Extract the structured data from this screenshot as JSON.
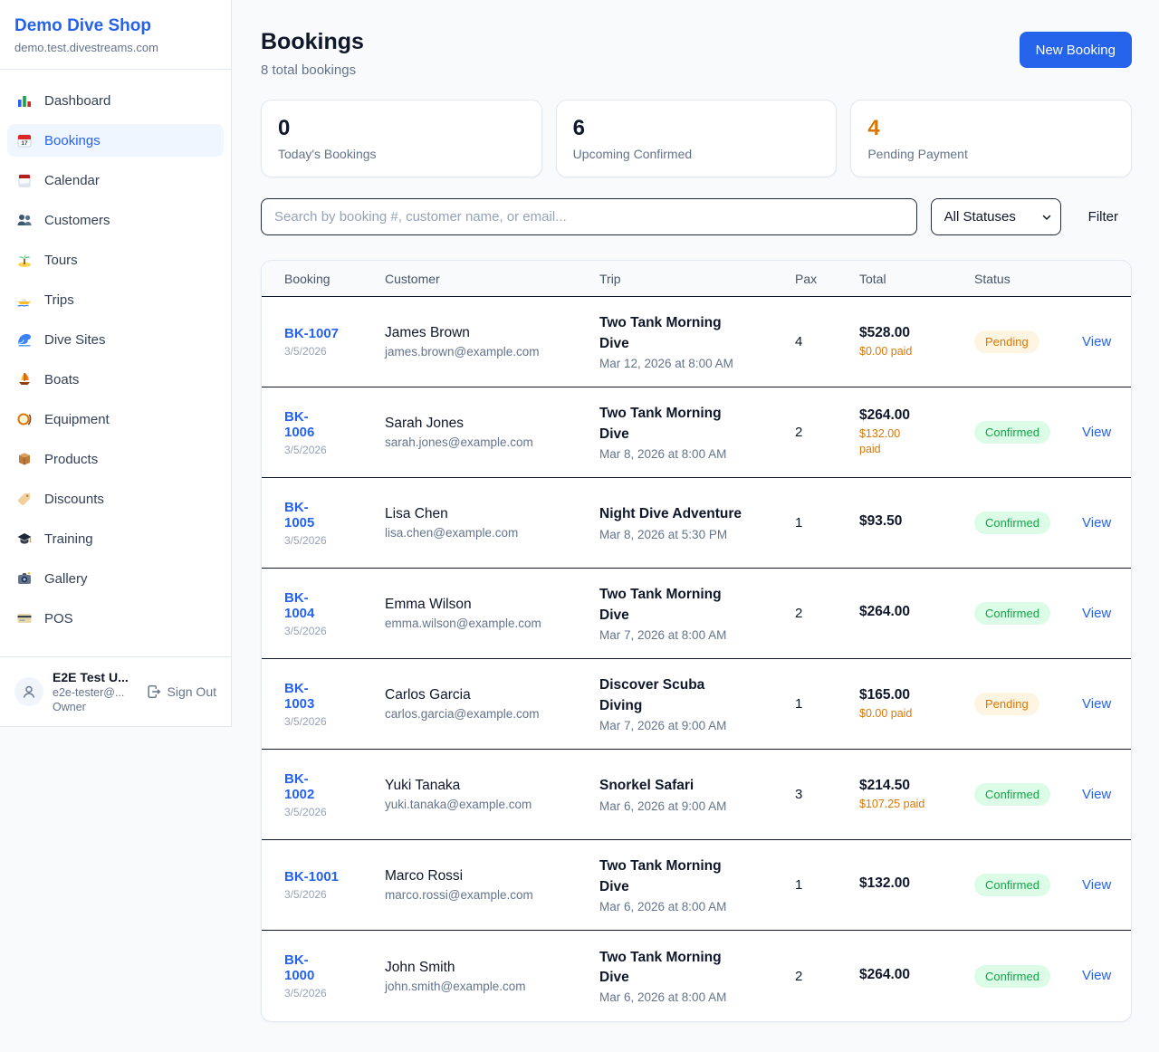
{
  "brand": {
    "name": "Demo Dive Shop",
    "domain": "demo.test.divestreams.com"
  },
  "sidebar": {
    "items": [
      {
        "label": "Dashboard",
        "icon": "bar-chart-icon"
      },
      {
        "label": "Bookings",
        "icon": "calendar-icon"
      },
      {
        "label": "Calendar",
        "icon": "tear-off-calendar-icon"
      },
      {
        "label": "Customers",
        "icon": "people-icon"
      },
      {
        "label": "Tours",
        "icon": "island-icon"
      },
      {
        "label": "Trips",
        "icon": "speedboat-icon"
      },
      {
        "label": "Dive Sites",
        "icon": "wave-icon"
      },
      {
        "label": "Boats",
        "icon": "sailboat-icon"
      },
      {
        "label": "Equipment",
        "icon": "dive-mask-icon"
      },
      {
        "label": "Products",
        "icon": "package-icon"
      },
      {
        "label": "Discounts",
        "icon": "tag-icon"
      },
      {
        "label": "Training",
        "icon": "graduation-cap-icon"
      },
      {
        "label": "Gallery",
        "icon": "camera-icon"
      },
      {
        "label": "POS",
        "icon": "credit-card-icon"
      }
    ],
    "active_item": "Bookings",
    "user": {
      "name": "E2E Test U...",
      "email": "e2e-tester@...",
      "role": "Owner",
      "sign_out_label": "Sign Out"
    }
  },
  "header": {
    "title": "Bookings",
    "subtitle": "8 total bookings",
    "new_booking_label": "New Booking"
  },
  "stats": [
    {
      "value": "0",
      "label": "Today's Bookings",
      "color": "#0f172a"
    },
    {
      "value": "6",
      "label": "Upcoming Confirmed",
      "color": "#0f172a"
    },
    {
      "value": "4",
      "label": "Pending Payment",
      "color": "#d97706"
    }
  ],
  "filters": {
    "search_placeholder": "Search by booking #, customer name, or email...",
    "status_selected": "All Statuses",
    "status_options": [
      "All Statuses"
    ],
    "filter_label": "Filter"
  },
  "table": {
    "columns": [
      "Booking",
      "Customer",
      "Trip",
      "Pax",
      "Total",
      "Status"
    ],
    "rows": [
      {
        "id": "BK-1007",
        "date": "3/5/2026",
        "customer": "James Brown",
        "email": "james.brown@example.com",
        "trip": "Two Tank Morning Dive",
        "trip_time": "Mar 12, 2026 at 8:00 AM",
        "pax": "4",
        "total": "$528.00",
        "paid": "$0.00 paid",
        "status": "Pending",
        "action": "View"
      },
      {
        "id": "BK-1006",
        "date": "3/5/2026",
        "customer": "Sarah Jones",
        "email": "sarah.jones@example.com",
        "trip": "Two Tank Morning Dive",
        "trip_time": "Mar 8, 2026 at 8:00 AM",
        "pax": "2",
        "total": "$264.00",
        "paid": "$132.00 paid",
        "status": "Confirmed",
        "action": "View"
      },
      {
        "id": "BK-1005",
        "date": "3/5/2026",
        "customer": "Lisa Chen",
        "email": "lisa.chen@example.com",
        "trip": "Night Dive Adventure",
        "trip_time": "Mar 8, 2026 at 5:30 PM",
        "pax": "1",
        "total": "$93.50",
        "status": "Confirmed",
        "action": "View"
      },
      {
        "id": "BK-1004",
        "date": "3/5/2026",
        "customer": "Emma Wilson",
        "email": "emma.wilson@example.com",
        "trip": "Two Tank Morning Dive",
        "trip_time": "Mar 7, 2026 at 8:00 AM",
        "pax": "2",
        "total": "$264.00",
        "status": "Confirmed",
        "action": "View"
      },
      {
        "id": "BK-1003",
        "date": "3/5/2026",
        "customer": "Carlos Garcia",
        "email": "carlos.garcia@example.com",
        "trip": "Discover Scuba Diving",
        "trip_time": "Mar 7, 2026 at 9:00 AM",
        "pax": "1",
        "total": "$165.00",
        "paid": "$0.00 paid",
        "status": "Pending",
        "action": "View"
      },
      {
        "id": "BK-1002",
        "date": "3/5/2026",
        "customer": "Yuki Tanaka",
        "email": "yuki.tanaka@example.com",
        "trip": "Snorkel Safari",
        "trip_time": "Mar 6, 2026 at 9:00 AM",
        "pax": "3",
        "total": "$214.50",
        "paid": "$107.25 paid",
        "status": "Confirmed",
        "action": "View"
      },
      {
        "id": "BK-1001",
        "date": "3/5/2026",
        "customer": "Marco Rossi",
        "email": "marco.rossi@example.com",
        "trip": "Two Tank Morning Dive",
        "trip_time": "Mar 6, 2026 at 8:00 AM",
        "pax": "1",
        "total": "$132.00",
        "status": "Confirmed",
        "action": "View"
      },
      {
        "id": "BK-1000",
        "date": "3/5/2026",
        "customer": "John Smith",
        "email": "john.smith@example.com",
        "trip": "Two Tank Morning Dive",
        "trip_time": "Mar 6, 2026 at 8:00 AM",
        "pax": "2",
        "total": "$264.00",
        "status": "Confirmed",
        "action": "View"
      }
    ]
  },
  "colors": {
    "accent_blue": "#2563eb",
    "pending_text": "#d97706",
    "pending_bg": "#fdf5e1",
    "confirmed_text": "#16a34a",
    "confirmed_bg": "#dcfce7"
  }
}
